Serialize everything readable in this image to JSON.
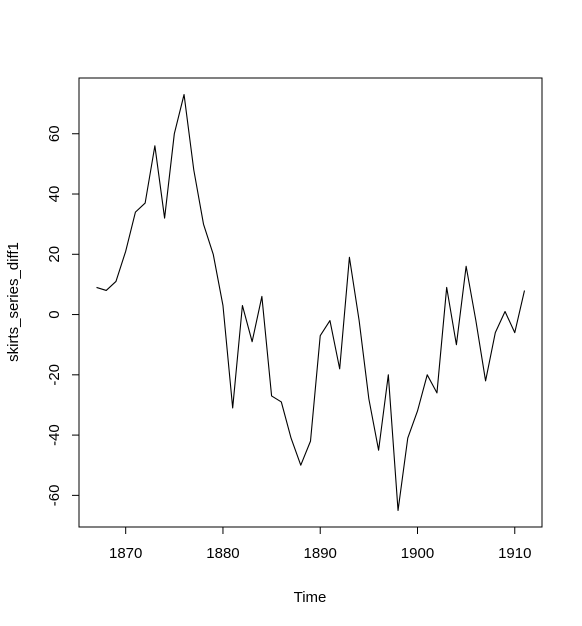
{
  "chart_data": {
    "type": "line",
    "title": "",
    "xlabel": "Time",
    "ylabel": "skirts_series_diff1",
    "xlim": [
      1865.2,
      1912.8
    ],
    "ylim": [
      -70.5,
      78.5
    ],
    "xticks": [
      1870,
      1880,
      1890,
      1900,
      1910
    ],
    "yticks": [
      -60,
      -40,
      -20,
      0,
      20,
      40,
      60
    ],
    "grid": false,
    "line_color": "#000000",
    "series": [
      {
        "x": [
          1867,
          1868,
          1869,
          1870,
          1871,
          1872,
          1873,
          1874,
          1875,
          1876,
          1877,
          1878,
          1879,
          1880,
          1881,
          1882,
          1883,
          1884,
          1885,
          1886,
          1887,
          1888,
          1889,
          1890,
          1891,
          1892,
          1893,
          1894,
          1895,
          1896,
          1897,
          1898,
          1899,
          1900,
          1901,
          1902,
          1903,
          1904,
          1905,
          1906,
          1907,
          1908,
          1909,
          1910,
          1911
        ],
        "values": [
          9,
          8,
          11,
          21,
          34,
          37,
          56,
          32,
          60,
          73,
          48,
          30,
          20,
          3,
          -31,
          3,
          -9,
          6,
          -27,
          -29,
          -41,
          -50,
          -42,
          -7,
          -2,
          -18,
          19,
          -2,
          -28,
          -45,
          -20,
          -65,
          -41,
          -32,
          -20,
          -26,
          9,
          -10,
          16,
          -2,
          -22,
          -6,
          1,
          -6,
          8
        ]
      }
    ]
  }
}
